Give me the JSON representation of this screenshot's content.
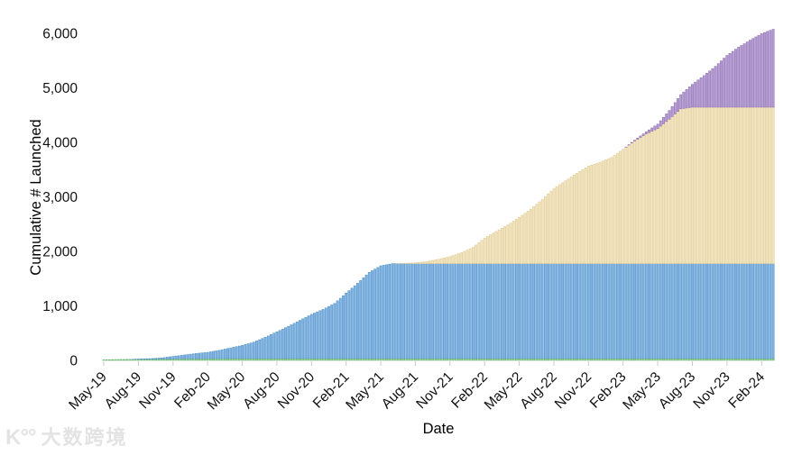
{
  "page": {
    "background": "#ffffff"
  },
  "watermark": {
    "logo": "K°°",
    "text": "大数跨境",
    "color": "#e3e3e3"
  },
  "chart_data": {
    "type": "bar",
    "subtype": "stacked-cumulative-daily-bars",
    "title": "",
    "xlabel": "Date",
    "ylabel": "Cumulative # Launched",
    "ylim": [
      0,
      6000
    ],
    "grid": false,
    "legend": "none",
    "y_ticks": [
      0,
      1000,
      2000,
      3000,
      4000,
      5000,
      6000
    ],
    "y_tick_labels": [
      "0",
      "1,000",
      "2,000",
      "3,000",
      "4,000",
      "5,000",
      "6,000"
    ],
    "x_tick_labels": [
      "May-19",
      "Aug-19",
      "Nov-19",
      "Feb-20",
      "May-20",
      "Aug-20",
      "Nov-20",
      "Feb-21",
      "May-21",
      "Aug-21",
      "Nov-21",
      "Feb-22",
      "May-22",
      "Aug-22",
      "Nov-22",
      "Feb-23",
      "May-23",
      "Aug-23",
      "Nov-23",
      "Feb-24"
    ],
    "x_tick_every_months": 3,
    "months": [
      "May-19",
      "Jun-19",
      "Jul-19",
      "Aug-19",
      "Sep-19",
      "Oct-19",
      "Nov-19",
      "Dec-19",
      "Jan-20",
      "Feb-20",
      "Mar-20",
      "Apr-20",
      "May-20",
      "Jun-20",
      "Jul-20",
      "Aug-20",
      "Sep-20",
      "Oct-20",
      "Nov-20",
      "Dec-20",
      "Jan-21",
      "Feb-21",
      "Mar-21",
      "Apr-21",
      "May-21",
      "Jun-21",
      "Jul-21",
      "Aug-21",
      "Sep-21",
      "Oct-21",
      "Nov-21",
      "Dec-21",
      "Jan-22",
      "Feb-22",
      "Mar-22",
      "Apr-22",
      "May-22",
      "Jun-22",
      "Jul-22",
      "Aug-22",
      "Sep-22",
      "Oct-22",
      "Nov-22",
      "Dec-22",
      "Jan-23",
      "Feb-23",
      "Mar-23",
      "Apr-23",
      "May-23",
      "Jun-23",
      "Jul-23",
      "Aug-23",
      "Sep-23",
      "Oct-23",
      "Nov-23",
      "Dec-23",
      "Jan-24",
      "Feb-24",
      "Mar-24"
    ],
    "series": [
      {
        "name": "green",
        "color": "#93cf93",
        "edge": "#5fae68",
        "values": [
          10,
          15,
          18,
          20,
          22,
          25,
          28,
          30,
          32,
          33,
          34,
          35,
          35,
          35,
          35,
          35,
          35,
          35,
          35,
          35,
          35,
          35,
          35,
          35,
          35,
          35,
          35,
          35,
          35,
          35,
          35,
          35,
          35,
          35,
          35,
          35,
          35,
          35,
          35,
          35,
          35,
          35,
          35,
          35,
          35,
          35,
          35,
          35,
          35,
          35,
          35,
          35,
          35,
          35,
          35,
          35,
          35,
          35,
          35
        ]
      },
      {
        "name": "blue",
        "color": "#7fb2e0",
        "edge": "#4d8fc9",
        "values": [
          0,
          0,
          0,
          5,
          10,
          20,
          45,
          70,
          95,
          115,
          150,
          195,
          240,
          300,
          390,
          490,
          590,
          700,
          810,
          900,
          1010,
          1200,
          1380,
          1580,
          1700,
          1740,
          1740,
          1740,
          1740,
          1740,
          1740,
          1740,
          1740,
          1740,
          1740,
          1740,
          1740,
          1740,
          1740,
          1740,
          1740,
          1740,
          1740,
          1740,
          1740,
          1740,
          1740,
          1740,
          1740,
          1740,
          1740,
          1740,
          1740,
          1740,
          1740,
          1740,
          1740,
          1740,
          1740
        ]
      },
      {
        "name": "tan",
        "color": "#f2e4bc",
        "edge": "#ddc890",
        "values": [
          0,
          0,
          0,
          0,
          0,
          0,
          0,
          0,
          0,
          0,
          0,
          0,
          0,
          0,
          0,
          0,
          0,
          0,
          0,
          0,
          0,
          0,
          0,
          0,
          0,
          0,
          5,
          15,
          40,
          80,
          130,
          200,
          300,
          470,
          590,
          710,
          850,
          1000,
          1180,
          1380,
          1520,
          1660,
          1790,
          1860,
          1950,
          2100,
          2250,
          2380,
          2480,
          2650,
          2840,
          2870,
          2870,
          2870,
          2870,
          2870,
          2870,
          2870,
          2870
        ]
      },
      {
        "name": "purple",
        "color": "#b29bd3",
        "edge": "#8a67ad",
        "values": [
          0,
          0,
          0,
          0,
          0,
          0,
          0,
          0,
          0,
          0,
          0,
          0,
          0,
          0,
          0,
          0,
          0,
          0,
          0,
          0,
          0,
          0,
          0,
          0,
          0,
          0,
          0,
          0,
          0,
          0,
          0,
          0,
          0,
          0,
          0,
          0,
          0,
          0,
          0,
          0,
          0,
          0,
          0,
          0,
          0,
          0,
          15,
          40,
          80,
          160,
          260,
          420,
          580,
          750,
          950,
          1100,
          1230,
          1350,
          1430
        ]
      }
    ]
  }
}
